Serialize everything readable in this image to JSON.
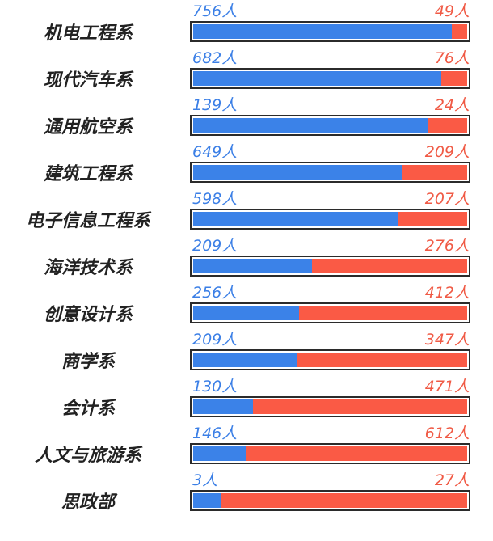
{
  "colors": {
    "left_series": "#3b82e8",
    "right_series": "#fa5a45",
    "left_text": "#3b7fe6",
    "right_text": "#f05a45",
    "frame": "#2b2b2b"
  },
  "chart_data": {
    "type": "bar",
    "orientation": "horizontal",
    "stacked": "percent",
    "title": "",
    "xlabel": "",
    "ylabel": "",
    "legend": "none",
    "grid": false,
    "unit_suffix": "人",
    "categories": [
      "机电工程系",
      "现代汽车系",
      "通用航空系",
      "建筑工程系",
      "电子信息工程系",
      "海洋技术系",
      "创意设计系",
      "商学系",
      "会计系",
      "人文与旅游系",
      "思政部"
    ],
    "series": [
      {
        "values": [
          756,
          682,
          139,
          649,
          598,
          209,
          256,
          209,
          130,
          146,
          3
        ]
      },
      {
        "values": [
          49,
          76,
          24,
          209,
          207,
          276,
          412,
          347,
          471,
          612,
          27
        ]
      }
    ],
    "labels_left": [
      "756人",
      "682人",
      "139人",
      "649人",
      "598人",
      "209人",
      "256人",
      "209人",
      "130人",
      "146人",
      "3人"
    ],
    "labels_right": [
      "49人",
      "76人",
      "24人",
      "209人",
      "207人",
      "276人",
      "412人",
      "347人",
      "471人",
      "612人",
      "27人"
    ]
  }
}
